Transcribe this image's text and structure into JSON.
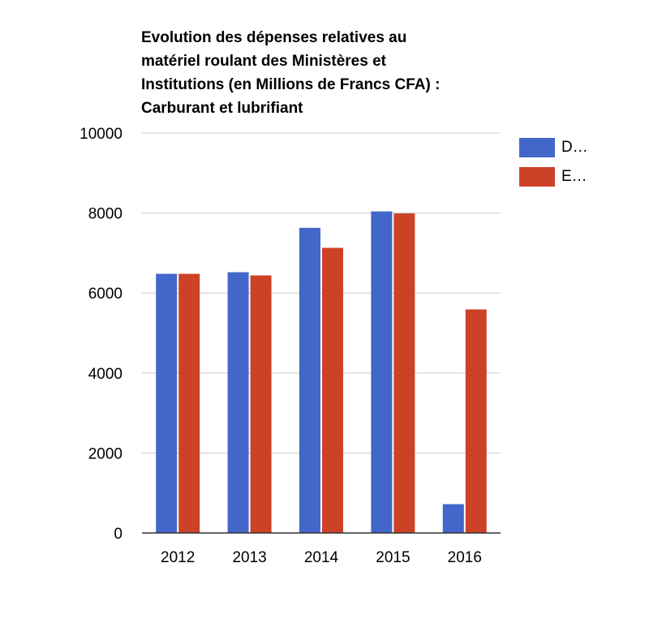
{
  "chart_data": {
    "type": "bar",
    "title_lines": [
      "Evolution des dépenses relatives au",
      "matériel roulant des Ministères et",
      "Institutions (en Millions de Francs CFA) :",
      "Carburant et lubrifiant"
    ],
    "categories": [
      "2012",
      "2013",
      "2014",
      "2015",
      "2016"
    ],
    "series": [
      {
        "name": "D…",
        "color": "#4266c9",
        "values": [
          6480,
          6520,
          7630,
          8040,
          720
        ]
      },
      {
        "name": "E…",
        "color": "#cc4227",
        "values": [
          6480,
          6440,
          7130,
          7990,
          5590
        ]
      }
    ],
    "yticks": [
      "0",
      "2000",
      "4000",
      "6000",
      "8000",
      "10000"
    ],
    "ylim": [
      0,
      10000
    ],
    "grid": true,
    "legend_position": "right"
  }
}
